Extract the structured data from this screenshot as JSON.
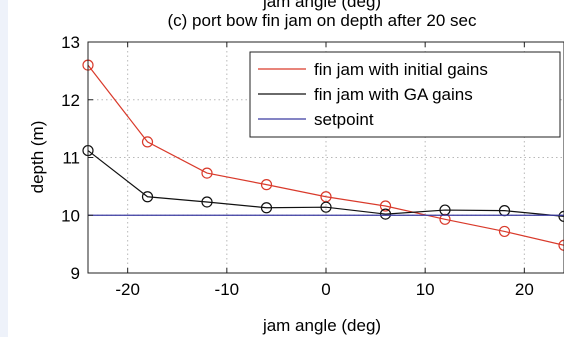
{
  "chart_data": {
    "type": "line",
    "top_text": "jam angle (deg)",
    "title": "(c) port bow fin jam on depth after 20 sec",
    "xlabel": "jam angle (deg)",
    "ylabel": "depth (m)",
    "xlim": [
      -24,
      24
    ],
    "ylim": [
      9,
      13
    ],
    "xticks": [
      -20,
      -10,
      0,
      10,
      20
    ],
    "yticks": [
      9,
      10,
      11,
      12,
      13
    ],
    "grid": true,
    "legend_position": "top-right",
    "series": [
      {
        "name": "fin jam with initial gains",
        "color": "#d93a2b",
        "marker": "circle",
        "x": [
          -24,
          -18,
          -12,
          -6,
          0,
          6,
          12,
          18,
          24
        ],
        "y": [
          12.6,
          11.27,
          10.73,
          10.53,
          10.32,
          10.16,
          9.93,
          9.72,
          9.48
        ]
      },
      {
        "name": "fin jam with GA gains",
        "color": "#111111",
        "marker": "circle",
        "x": [
          -24,
          -18,
          -12,
          -6,
          0,
          6,
          12,
          18,
          24
        ],
        "y": [
          11.12,
          10.32,
          10.23,
          10.13,
          10.14,
          10.02,
          10.09,
          10.08,
          9.98
        ]
      },
      {
        "name": "setpoint",
        "color": "#3a3aa0",
        "marker": "none",
        "x": [
          -24,
          24
        ],
        "y": [
          10,
          10
        ]
      }
    ]
  }
}
